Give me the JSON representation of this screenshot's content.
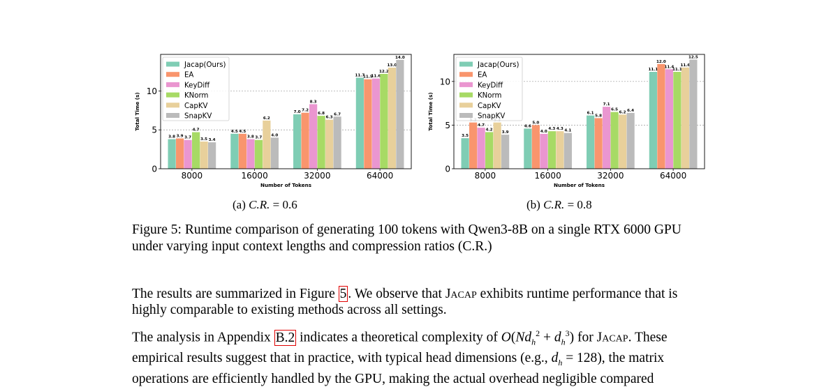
{
  "figure": {
    "subfigures": [
      {
        "label": "(a) ",
        "cr_var": "C.R.",
        "cr_rest": " = 0.6"
      },
      {
        "label": "(b) ",
        "cr_var": "C.R.",
        "cr_rest": " = 0.8"
      }
    ],
    "caption": "Figure 5: Runtime comparison of generating 100 tokens with Qwen3-8B on a single RTX 6000 GPU under varying input context lengths and compression ratios (C.R.)"
  },
  "colors": {
    "Jacap(Ours)": "#7fcdb4",
    "EA": "#f9956d",
    "KeyDiff": "#ea96d0",
    "KNorm": "#a7da65",
    "CapKV": "#e8d09b",
    "SnapKV": "#bbbbbb"
  },
  "chart_data": [
    {
      "type": "bar",
      "title": "",
      "xlabel": "Number of Tokens",
      "ylabel": "Total Time (s)",
      "categories": [
        "8000",
        "16000",
        "32000",
        "64000"
      ],
      "yticks": [
        0,
        5,
        10
      ],
      "ylim": [
        0,
        14.7
      ],
      "grid": "horizontal-dotted",
      "legend": "top-left",
      "series": [
        {
          "name": "Jacap(Ours)",
          "values": [
            3.8,
            4.5,
            7.0,
            11.7
          ]
        },
        {
          "name": "EA",
          "values": [
            3.9,
            4.5,
            7.2,
            11.5
          ]
        },
        {
          "name": "KeyDiff",
          "values": [
            3.7,
            3.8,
            8.3,
            11.6
          ]
        },
        {
          "name": "KNorm",
          "values": [
            4.7,
            3.7,
            6.8,
            12.2
          ]
        },
        {
          "name": "CapKV",
          "values": [
            3.5,
            6.2,
            6.3,
            13.0
          ]
        },
        {
          "name": "SnapKV",
          "values": [
            3.4,
            4.0,
            6.7,
            14.0
          ]
        }
      ]
    },
    {
      "type": "bar",
      "title": "",
      "xlabel": "Number of Tokens",
      "ylabel": "Total Time (s)",
      "categories": [
        "8000",
        "16000",
        "32000",
        "64000"
      ],
      "yticks": [
        0,
        5,
        10
      ],
      "ylim": [
        0,
        13.1
      ],
      "grid": "horizontal-dotted",
      "legend": "top-left",
      "series": [
        {
          "name": "Jacap(Ours)",
          "values": [
            3.5,
            4.6,
            6.1,
            11.1
          ]
        },
        {
          "name": "EA",
          "values": [
            5.3,
            5.0,
            5.8,
            12.0
          ]
        },
        {
          "name": "KeyDiff",
          "values": [
            4.7,
            4.0,
            7.1,
            11.4
          ]
        },
        {
          "name": "KNorm",
          "values": [
            4.2,
            4.3,
            6.5,
            11.1
          ]
        },
        {
          "name": "CapKV",
          "values": [
            5.3,
            4.3,
            6.2,
            11.6
          ]
        },
        {
          "name": "SnapKV",
          "values": [
            3.9,
            4.1,
            6.4,
            12.5
          ]
        }
      ]
    }
  ],
  "body": {
    "p1_a": "The results are summarized in Figure ",
    "p1_ref": "5",
    "p1_b": ". We observe that ",
    "p1_name": "Jacap",
    "p1_c": " exhibits runtime performance that is highly comparable to existing methods across all settings.",
    "p2_a": "The analysis in Appendix ",
    "p2_ref": "B.2",
    "p2_b": " indicates a theoretical complexity of ",
    "p2_c": " for ",
    "p2_name": "Jacap",
    "p2_d": ". These empirical results suggest that in practice, with typical head dimensions (e.g., ",
    "p2_e": "), the matrix operations are efficiently handled by the GPU, making the actual overhead negligible compared"
  }
}
